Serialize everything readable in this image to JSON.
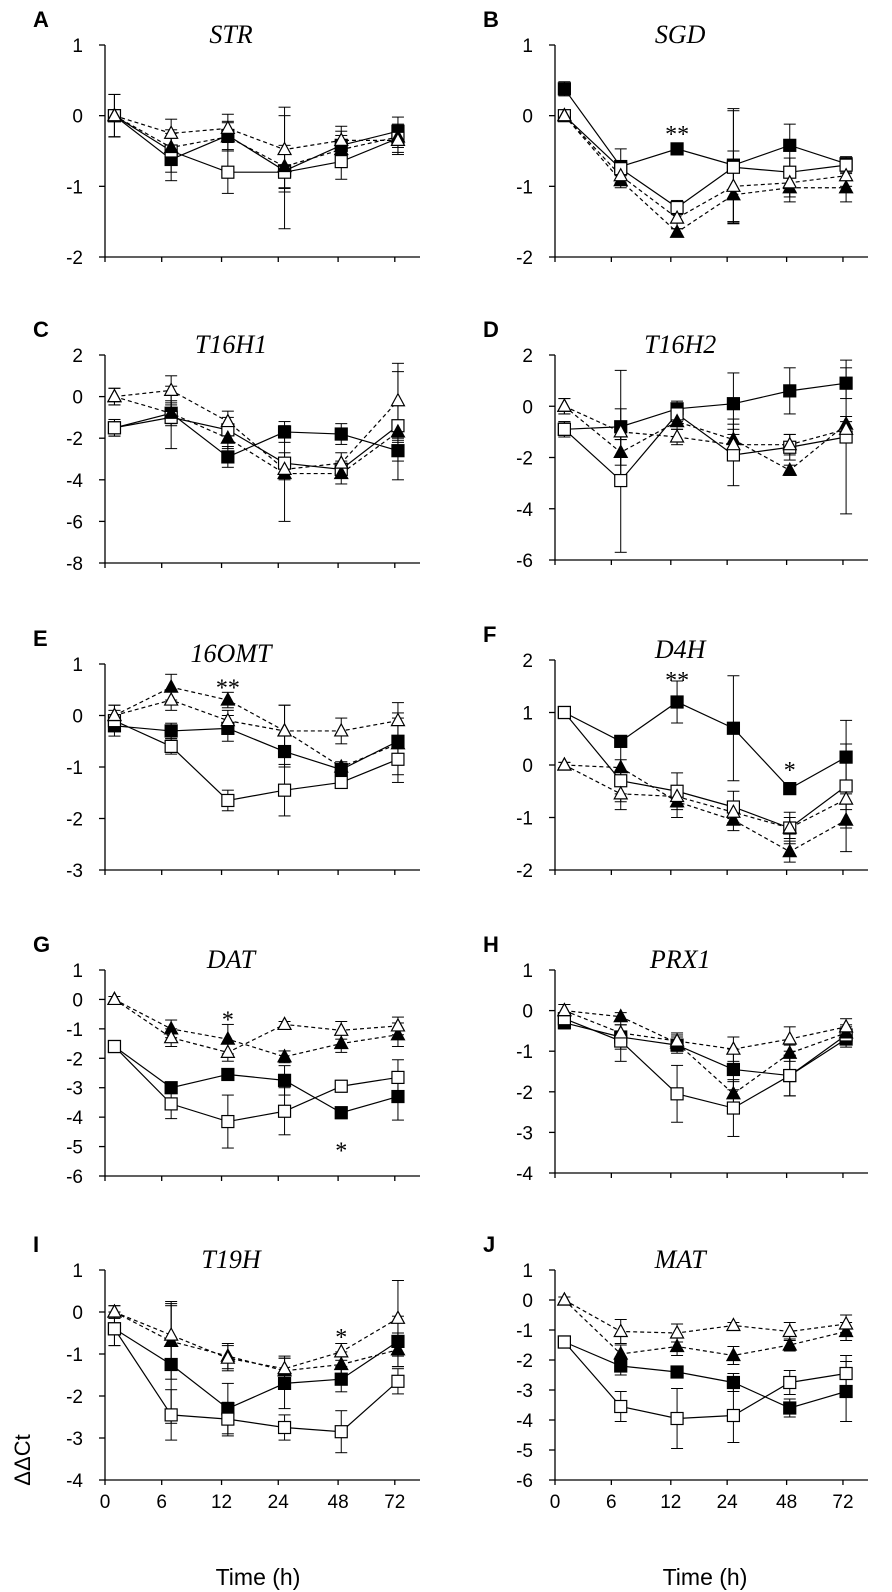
{
  "figure": {
    "y_axis_label": "ΔΔCt",
    "x_axis_label": "Time (h)",
    "x_tick_labels": [
      "0",
      "6",
      "12",
      "24",
      "48",
      "72"
    ]
  },
  "chart_data": [
    {
      "type": "line",
      "panel": "A",
      "title": "STR",
      "ylim": [
        -2,
        1
      ],
      "yticks": [
        1,
        0,
        -1,
        -2
      ],
      "ytick_labels": [
        "1",
        "0",
        "-1",
        "-2"
      ],
      "series": [
        {
          "name": "filled-square",
          "values": [
            0,
            -0.62,
            -0.28,
            -0.78,
            -0.42,
            -0.22
          ],
          "errors": [
            0.3,
            0.3,
            0.2,
            0.25,
            0.2,
            0.2
          ]
        },
        {
          "name": "open-square",
          "values": [
            0,
            -0.5,
            -0.8,
            -0.8,
            -0.65,
            -0.32
          ],
          "errors": [
            0.3,
            0.3,
            0.3,
            0.8,
            0.25,
            0.2
          ]
        },
        {
          "name": "filled-triangle",
          "values": [
            0,
            -0.45,
            -0.3,
            -0.72,
            -0.48,
            -0.3
          ],
          "errors": [
            0.3,
            0.2,
            0.2,
            0.3,
            0.2,
            0.15
          ]
        },
        {
          "name": "open-triangle",
          "values": [
            0,
            -0.25,
            -0.18,
            -0.48,
            -0.35,
            -0.35
          ],
          "errors": [
            0.3,
            0.2,
            0.2,
            0.6,
            0.2,
            0.2
          ]
        }
      ],
      "annotations": []
    },
    {
      "type": "line",
      "panel": "B",
      "title": "SGD",
      "ylim": [
        -2,
        1
      ],
      "yticks": [
        1,
        0,
        -1,
        -2
      ],
      "ytick_labels": [
        "1",
        "0",
        "-1",
        "-2"
      ],
      "series": [
        {
          "name": "filled-square",
          "values": [
            0.38,
            -0.72,
            -0.47,
            -0.7,
            -0.42,
            -0.68
          ],
          "errors": [
            0.1,
            0.25,
            0.05,
            0.8,
            0.3,
            0.1
          ]
        },
        {
          "name": "open-square",
          "values": [
            0,
            -0.75,
            -1.3,
            -0.73,
            -0.8,
            -0.7
          ],
          "errors": [
            0.05,
            0.1,
            0.1,
            0.8,
            0.2,
            0.1
          ]
        },
        {
          "name": "filled-triangle",
          "values": [
            0,
            -0.92,
            -1.65,
            -1.12,
            -1.02,
            -1.02
          ],
          "errors": [
            0.05,
            0.1,
            0.05,
            0.4,
            0.2,
            0.2
          ]
        },
        {
          "name": "open-triangle",
          "values": [
            0,
            -0.85,
            -1.45,
            -1.0,
            -0.95,
            -0.85
          ],
          "errors": [
            0.05,
            0.1,
            0.15,
            0.5,
            0.2,
            0.15
          ]
        }
      ],
      "annotations": [
        {
          "x_index": 2,
          "y": -0.2,
          "text": "**"
        }
      ]
    },
    {
      "type": "line",
      "panel": "C",
      "title": "T16H1",
      "ylim": [
        -8,
        2
      ],
      "yticks": [
        2,
        0,
        -2,
        -4,
        -6,
        -8
      ],
      "ytick_labels": [
        "2",
        "0",
        "-2",
        "-4",
        "-6",
        "-8"
      ],
      "series": [
        {
          "name": "filled-square",
          "values": [
            -1.5,
            -0.8,
            -2.9,
            -1.7,
            -1.8,
            -2.6
          ],
          "errors": [
            0.4,
            0.5,
            0.5,
            0.5,
            0.5,
            0.5
          ]
        },
        {
          "name": "open-square",
          "values": [
            -1.5,
            -1.0,
            -1.6,
            -3.2,
            -3.5,
            -1.4
          ],
          "errors": [
            0.4,
            1.5,
            0.6,
            0.5,
            0.4,
            2.6
          ]
        },
        {
          "name": "filled-triangle",
          "values": [
            0,
            -0.8,
            -2.0,
            -3.7,
            -3.7,
            -1.7
          ],
          "errors": [
            0.4,
            0.6,
            0.5,
            2.3,
            0.5,
            0.5
          ]
        },
        {
          "name": "open-triangle",
          "values": [
            0,
            0.3,
            -1.2,
            -3.5,
            -3.2,
            -0.2
          ],
          "errors": [
            0.4,
            0.7,
            0.5,
            0.5,
            0.5,
            1.8
          ]
        }
      ],
      "annotations": []
    },
    {
      "type": "line",
      "panel": "D",
      "title": "T16H2",
      "ylim": [
        -6,
        2
      ],
      "yticks": [
        2,
        0,
        -2,
        -4,
        -6
      ],
      "ytick_labels": [
        "2",
        "0",
        "-2",
        "-4",
        "-6"
      ],
      "series": [
        {
          "name": "filled-square",
          "values": [
            -0.9,
            -0.8,
            -0.1,
            0.1,
            0.6,
            0.9
          ],
          "errors": [
            0.3,
            2.2,
            0.3,
            1.2,
            0.9,
            0.6
          ]
        },
        {
          "name": "open-square",
          "values": [
            -0.9,
            -2.9,
            -0.3,
            -1.9,
            -1.6,
            -1.2
          ],
          "errors": [
            0.3,
            2.8,
            0.3,
            1.2,
            0.5,
            3.0
          ]
        },
        {
          "name": "filled-triangle",
          "values": [
            0,
            -1.8,
            -0.6,
            -1.3,
            -2.5,
            -0.7
          ],
          "errors": [
            0.3,
            0.5,
            0.3,
            0.8,
            0.2,
            0.3
          ]
        },
        {
          "name": "open-triangle",
          "values": [
            0,
            -1.0,
            -1.2,
            -1.5,
            -1.5,
            -0.9
          ],
          "errors": [
            0.3,
            0.3,
            0.3,
            0.6,
            0.4,
            0.3
          ]
        }
      ],
      "annotations": []
    },
    {
      "type": "line",
      "panel": "E",
      "title": "16OMT",
      "ylim": [
        -3,
        1
      ],
      "yticks": [
        1,
        0,
        -1,
        -2,
        -3
      ],
      "ytick_labels": [
        "1",
        "0",
        "-1",
        "-2",
        "-3"
      ],
      "series": [
        {
          "name": "filled-square",
          "values": [
            -0.2,
            -0.3,
            -0.25,
            -0.7,
            -1.05,
            -0.5
          ],
          "errors": [
            0.2,
            0.15,
            0.25,
            0.3,
            0.15,
            0.45
          ]
        },
        {
          "name": "open-square",
          "values": [
            -0.1,
            -0.6,
            -1.65,
            -1.45,
            -1.3,
            -0.85
          ],
          "errors": [
            0.2,
            0.15,
            0.2,
            0.5,
            0.1,
            0.45
          ]
        },
        {
          "name": "filled-triangle",
          "values": [
            0,
            0.55,
            0.3,
            -0.3,
            -1.0,
            -0.55
          ],
          "errors": [
            0.2,
            0.25,
            0.15,
            0.5,
            0.1,
            0.6
          ]
        },
        {
          "name": "open-triangle",
          "values": [
            0,
            0.3,
            -0.1,
            -0.3,
            -0.3,
            -0.1
          ],
          "errors": [
            0.2,
            0.2,
            0.2,
            0.5,
            0.25,
            0.35
          ]
        }
      ],
      "annotations": [
        {
          "x_index": 2,
          "y": 0.62,
          "text": "**"
        }
      ]
    },
    {
      "type": "line",
      "panel": "F",
      "title": "D4H",
      "ylim": [
        -2,
        2
      ],
      "yticks": [
        2,
        1,
        0,
        -1,
        -2
      ],
      "ytick_labels": [
        "2",
        "1",
        "0",
        "-1",
        "-2"
      ],
      "series": [
        {
          "name": "filled-square",
          "values": [
            1.0,
            0.45,
            1.2,
            0.7,
            -0.45,
            0.15
          ],
          "errors": [
            0.05,
            0.1,
            0.4,
            1.0,
            0.1,
            0.7
          ]
        },
        {
          "name": "open-square",
          "values": [
            1.0,
            -0.3,
            -0.5,
            -0.8,
            -1.2,
            -0.4
          ],
          "errors": [
            0.05,
            0.4,
            0.35,
            0.3,
            0.3,
            0.8
          ]
        },
        {
          "name": "filled-triangle",
          "values": [
            0,
            -0.05,
            -0.7,
            -1.05,
            -1.65,
            -1.05
          ],
          "errors": [
            0.05,
            0.5,
            0.3,
            0.2,
            0.2,
            0.6
          ]
        },
        {
          "name": "open-triangle",
          "values": [
            0,
            -0.55,
            -0.6,
            -0.9,
            -1.2,
            -0.65
          ],
          "errors": [
            0.05,
            0.3,
            0.2,
            0.2,
            0.2,
            0.2
          ]
        }
      ],
      "annotations": [
        {
          "x_index": 2,
          "y": 1.7,
          "text": "**"
        },
        {
          "x_index": 4,
          "y": -0.02,
          "text": "*"
        }
      ]
    },
    {
      "type": "line",
      "panel": "G",
      "title": "DAT",
      "ylim": [
        -6,
        1
      ],
      "yticks": [
        1,
        0,
        -1,
        -2,
        -3,
        -4,
        -5,
        -6
      ],
      "ytick_labels": [
        "1",
        "0",
        "-1",
        "-2",
        "-3",
        "-4",
        "-5",
        "-6"
      ],
      "series": [
        {
          "name": "filled-square",
          "values": [
            -1.6,
            -3.0,
            -2.55,
            -2.75,
            -3.85,
            -3.3
          ],
          "errors": [
            0.1,
            0.1,
            0.2,
            0.5,
            0.2,
            0.8
          ]
        },
        {
          "name": "open-square",
          "values": [
            -1.6,
            -3.55,
            -4.15,
            -3.8,
            -2.95,
            -2.65
          ],
          "errors": [
            0.1,
            0.5,
            0.9,
            0.8,
            0.2,
            0.6
          ]
        },
        {
          "name": "filled-triangle",
          "values": [
            0,
            -1.0,
            -1.35,
            -1.95,
            -1.5,
            -1.2
          ],
          "errors": [
            0.1,
            0.3,
            0.5,
            0.2,
            0.3,
            0.4
          ]
        },
        {
          "name": "open-triangle",
          "values": [
            0,
            -1.3,
            -1.8,
            -0.85,
            -1.05,
            -0.9
          ],
          "errors": [
            0.1,
            0.3,
            0.3,
            0.1,
            0.3,
            0.3
          ]
        }
      ],
      "annotations": [
        {
          "x_index": 2,
          "y": -0.55,
          "text": "*"
        },
        {
          "x_index": 4,
          "y": -5.0,
          "text": "*"
        }
      ]
    },
    {
      "type": "line",
      "panel": "H",
      "title": "PRX1",
      "ylim": [
        -4,
        1
      ],
      "yticks": [
        1,
        0,
        -1,
        -2,
        -3,
        -4
      ],
      "ytick_labels": [
        "1",
        "0",
        "-1",
        "-2",
        "-3",
        "-4"
      ],
      "series": [
        {
          "name": "filled-square",
          "values": [
            -0.3,
            -0.65,
            -0.85,
            -1.45,
            -1.6,
            -0.7
          ],
          "errors": [
            0.15,
            0.3,
            0.2,
            0.5,
            0.5,
            0.2
          ]
        },
        {
          "name": "open-square",
          "values": [
            -0.2,
            -0.75,
            -2.05,
            -2.4,
            -1.6,
            -0.6
          ],
          "errors": [
            0.15,
            0.5,
            0.7,
            0.7,
            0.5,
            0.2
          ]
        },
        {
          "name": "filled-triangle",
          "values": [
            0,
            -0.15,
            -0.8,
            -2.05,
            -1.05,
            -0.55
          ],
          "errors": [
            0.15,
            0.1,
            0.2,
            0.3,
            0.2,
            0.2
          ]
        },
        {
          "name": "open-triangle",
          "values": [
            0,
            -0.55,
            -0.75,
            -0.95,
            -0.7,
            -0.4
          ],
          "errors": [
            0.15,
            0.2,
            0.2,
            0.3,
            0.3,
            0.2
          ]
        }
      ],
      "annotations": []
    },
    {
      "type": "line",
      "panel": "I",
      "title": "T19H",
      "ylim": [
        -4,
        1
      ],
      "yticks": [
        1,
        0,
        -1,
        -2,
        -3,
        -4
      ],
      "ytick_labels": [
        "1",
        "0",
        "-1",
        "-2",
        "-3",
        "-4"
      ],
      "series": [
        {
          "name": "filled-square",
          "values": [
            -0.4,
            -1.25,
            -2.3,
            -1.7,
            -1.6,
            -0.7
          ],
          "errors": [
            0.4,
            1.4,
            0.6,
            0.6,
            0.3,
            0.6
          ]
        },
        {
          "name": "open-square",
          "values": [
            -0.4,
            -2.45,
            -2.55,
            -2.75,
            -2.85,
            -1.65
          ],
          "errors": [
            0.4,
            0.6,
            0.4,
            0.3,
            0.5,
            0.3
          ]
        },
        {
          "name": "filled-triangle",
          "values": [
            0,
            -0.7,
            -1.05,
            -1.4,
            -1.25,
            -0.9
          ],
          "errors": [
            0.15,
            0.9,
            0.3,
            0.3,
            0.3,
            0.4
          ]
        },
        {
          "name": "open-triangle",
          "values": [
            0,
            -0.55,
            -1.1,
            -1.35,
            -0.95,
            -0.15
          ],
          "errors": [
            0.15,
            0.8,
            0.3,
            0.3,
            0.2,
            0.9
          ]
        }
      ],
      "annotations": [
        {
          "x_index": 4,
          "y": -0.5,
          "text": "*"
        }
      ]
    },
    {
      "type": "line",
      "panel": "J",
      "title": "MAT",
      "ylim": [
        -6,
        1
      ],
      "yticks": [
        1,
        0,
        -1,
        -2,
        -3,
        -4,
        -5,
        -6
      ],
      "ytick_labels": [
        "1",
        "0",
        "-1",
        "-2",
        "-3",
        "-4",
        "-5",
        "-6"
      ],
      "series": [
        {
          "name": "filled-square",
          "values": [
            -1.4,
            -2.2,
            -2.4,
            -2.75,
            -3.6,
            -3.05
          ],
          "errors": [
            0.1,
            0.3,
            0.2,
            0.3,
            0.3,
            1.0
          ]
        },
        {
          "name": "open-square",
          "values": [
            -1.4,
            -3.55,
            -3.95,
            -3.85,
            -2.75,
            -2.45
          ],
          "errors": [
            0.1,
            0.5,
            1.0,
            0.9,
            0.4,
            0.6
          ]
        },
        {
          "name": "filled-triangle",
          "values": [
            0,
            -1.8,
            -1.55,
            -1.85,
            -1.5,
            -1.05
          ],
          "errors": [
            0.1,
            0.3,
            0.3,
            0.3,
            0.2,
            0.3
          ]
        },
        {
          "name": "open-triangle",
          "values": [
            0,
            -1.05,
            -1.1,
            -0.85,
            -1.05,
            -0.8
          ],
          "errors": [
            0.1,
            0.4,
            0.3,
            0.1,
            0.3,
            0.3
          ]
        }
      ],
      "annotations": []
    }
  ]
}
